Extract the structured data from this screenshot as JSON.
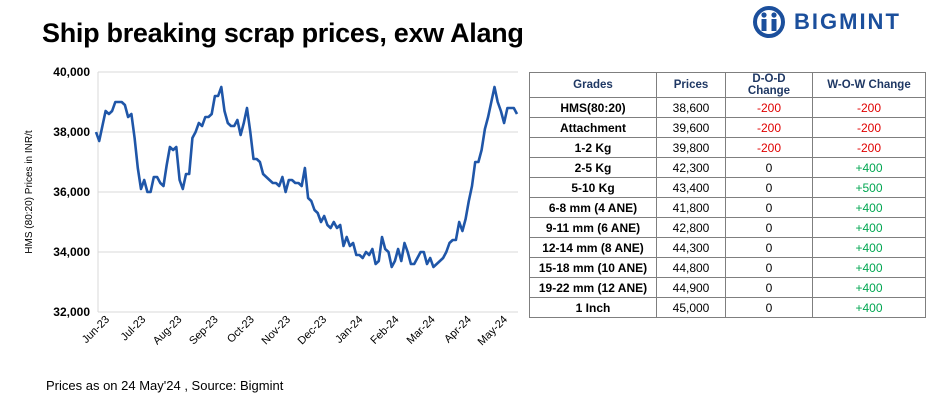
{
  "title": "Ship breaking scrap prices, exw Alang",
  "logo": {
    "text": "BIGMINT"
  },
  "footnote": "Prices as on 24 May'24 , Source: Bigmint",
  "colors": {
    "line": "#1f56a8",
    "negative": "#e00000",
    "positive": "#00a651",
    "brand": "#1b4f9c"
  },
  "table": {
    "headers": [
      "Grades",
      "Prices",
      "D-O-D Change",
      "W-O-W Change"
    ],
    "rows": [
      {
        "grade": "HMS(80:20)",
        "price": "38,600",
        "dod": "-200",
        "wow": "-200"
      },
      {
        "grade": "Attachment",
        "price": "39,600",
        "dod": "-200",
        "wow": "-200"
      },
      {
        "grade": "1-2 Kg",
        "price": "39,800",
        "dod": "-200",
        "wow": "-200"
      },
      {
        "grade": "2-5 Kg",
        "price": "42,300",
        "dod": "0",
        "wow": "+400"
      },
      {
        "grade": "5-10 Kg",
        "price": "43,400",
        "dod": "0",
        "wow": "+500"
      },
      {
        "grade": "6-8 mm (4 ANE)",
        "price": "41,800",
        "dod": "0",
        "wow": "+400"
      },
      {
        "grade": "9-11 mm (6 ANE)",
        "price": "42,800",
        "dod": "0",
        "wow": "+400"
      },
      {
        "grade": "12-14 mm (8 ANE)",
        "price": "44,300",
        "dod": "0",
        "wow": "+400"
      },
      {
        "grade": "15-18 mm (10 ANE)",
        "price": "44,800",
        "dod": "0",
        "wow": "+400"
      },
      {
        "grade": "19-22 mm (12 ANE)",
        "price": "44,900",
        "dod": "0",
        "wow": "+400"
      },
      {
        "grade": "1 Inch",
        "price": "45,000",
        "dod": "0",
        "wow": "+400"
      }
    ]
  },
  "chart_data": {
    "type": "line",
    "title": "",
    "xlabel": "",
    "ylabel": "HMS (80:20) Prices in INR/t",
    "ylim": [
      32000,
      40000
    ],
    "yticks": [
      "32,000",
      "34,000",
      "36,000",
      "38,000",
      "40,000"
    ],
    "ytick_values": [
      32000,
      34000,
      36000,
      38000,
      40000
    ],
    "xticks": [
      "Jun-23",
      "Jul-23",
      "Aug-23",
      "Sep-23",
      "Oct-23",
      "Nov-23",
      "Dec-23",
      "Jan-24",
      "Feb-24",
      "Mar-24",
      "Apr-24",
      "May-24"
    ],
    "grid": "horizontal",
    "series": [
      {
        "values": [
          38000,
          37700,
          38200,
          38700,
          38600,
          38700,
          39000,
          39000,
          39000,
          38900,
          38500,
          38600,
          37800,
          36800,
          36100,
          36400,
          36000,
          36000,
          36500,
          36500,
          36300,
          36200,
          36900,
          37500,
          37400,
          37500,
          36400,
          36100,
          36600,
          36600,
          37800,
          38000,
          38300,
          38200,
          38500,
          38500,
          38600,
          39200,
          39200,
          39500,
          38700,
          38300,
          38200,
          38200,
          38400,
          37900,
          38300,
          38800,
          38000,
          37100,
          37100,
          37000,
          36600,
          36500,
          36400,
          36300,
          36300,
          36200,
          36500,
          36000,
          36400,
          36400,
          36300,
          36300,
          36200,
          36800,
          35800,
          35700,
          35400,
          35300,
          35000,
          35200,
          34900,
          34800,
          35000,
          34800,
          34900,
          34200,
          34500,
          34200,
          34300,
          33900,
          33900,
          33800,
          34000,
          33900,
          34100,
          33600,
          33700,
          34500,
          34100,
          34000,
          33500,
          33700,
          34100,
          33700,
          34300,
          34000,
          33600,
          33600,
          33800,
          34000,
          34000,
          33600,
          33800,
          33500,
          33600,
          33700,
          33800,
          34000,
          34300,
          34400,
          34400,
          35000,
          34700,
          35100,
          35700,
          36200,
          37000,
          37000,
          37400,
          38100,
          38500,
          39000,
          39500,
          39000,
          38700,
          38300,
          38800,
          38800,
          38800,
          38600
        ]
      }
    ]
  }
}
